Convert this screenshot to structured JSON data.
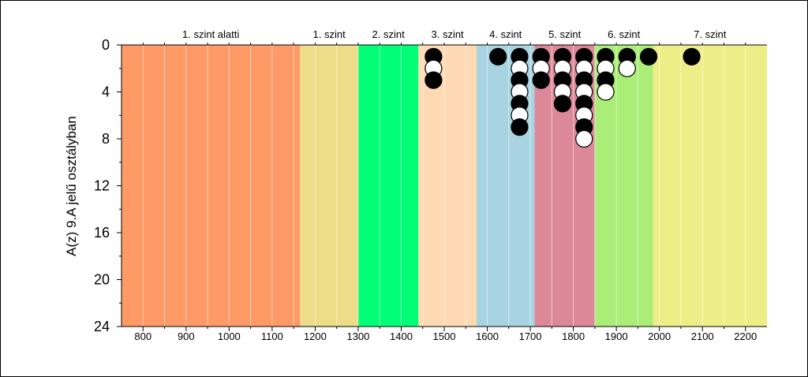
{
  "chart_data": {
    "type": "scatter",
    "ylabel": "A(z) 9.A jelű osztályban",
    "xlim": [
      750,
      2250
    ],
    "ylim": [
      24,
      0
    ],
    "x_ticks": [
      800,
      900,
      1000,
      1100,
      1200,
      1300,
      1400,
      1500,
      1600,
      1700,
      1800,
      1900,
      2000,
      2100,
      2200
    ],
    "y_ticks": [
      0,
      4,
      8,
      12,
      16,
      20,
      24
    ],
    "bands": [
      {
        "label": "1. szint alatti",
        "from": 750,
        "to": 1165,
        "color": "#FF9966"
      },
      {
        "label": "1. szint",
        "from": 1165,
        "to": 1300,
        "color": "#EEDD88"
      },
      {
        "label": "2. szint",
        "from": 1300,
        "to": 1440,
        "color": "#00FF77"
      },
      {
        "label": "3. szint",
        "from": 1440,
        "to": 1575,
        "color": "#FFD9B3"
      },
      {
        "label": "4. szint",
        "from": 1575,
        "to": 1710,
        "color": "#A8D4E2"
      },
      {
        "label": "5. szint",
        "from": 1710,
        "to": 1850,
        "color": "#DD8899"
      },
      {
        "label": "6. szint",
        "from": 1850,
        "to": 1985,
        "color": "#AAEE77"
      },
      {
        "label": "7. szint",
        "from": 1985,
        "to": 2250,
        "color": "#EEEE88"
      }
    ],
    "points": [
      {
        "x": 1475,
        "y": 1,
        "fill": "black"
      },
      {
        "x": 1475,
        "y": 2,
        "fill": "white"
      },
      {
        "x": 1475,
        "y": 3,
        "fill": "black"
      },
      {
        "x": 1625,
        "y": 1,
        "fill": "black"
      },
      {
        "x": 1675,
        "y": 1,
        "fill": "black"
      },
      {
        "x": 1675,
        "y": 2,
        "fill": "white"
      },
      {
        "x": 1675,
        "y": 3,
        "fill": "black"
      },
      {
        "x": 1675,
        "y": 4,
        "fill": "white"
      },
      {
        "x": 1675,
        "y": 5,
        "fill": "black"
      },
      {
        "x": 1675,
        "y": 6,
        "fill": "white"
      },
      {
        "x": 1675,
        "y": 7,
        "fill": "black"
      },
      {
        "x": 1725,
        "y": 1,
        "fill": "black"
      },
      {
        "x": 1725,
        "y": 2,
        "fill": "white"
      },
      {
        "x": 1725,
        "y": 3,
        "fill": "black"
      },
      {
        "x": 1775,
        "y": 1,
        "fill": "black"
      },
      {
        "x": 1775,
        "y": 2,
        "fill": "white"
      },
      {
        "x": 1775,
        "y": 3,
        "fill": "black"
      },
      {
        "x": 1775,
        "y": 4,
        "fill": "white"
      },
      {
        "x": 1775,
        "y": 5,
        "fill": "black"
      },
      {
        "x": 1825,
        "y": 1,
        "fill": "black"
      },
      {
        "x": 1825,
        "y": 2,
        "fill": "white"
      },
      {
        "x": 1825,
        "y": 3,
        "fill": "black"
      },
      {
        "x": 1825,
        "y": 4,
        "fill": "white"
      },
      {
        "x": 1825,
        "y": 5,
        "fill": "black"
      },
      {
        "x": 1825,
        "y": 6,
        "fill": "white"
      },
      {
        "x": 1825,
        "y": 7,
        "fill": "black"
      },
      {
        "x": 1825,
        "y": 8,
        "fill": "white"
      },
      {
        "x": 1875,
        "y": 1,
        "fill": "black"
      },
      {
        "x": 1875,
        "y": 2,
        "fill": "white"
      },
      {
        "x": 1875,
        "y": 3,
        "fill": "black"
      },
      {
        "x": 1875,
        "y": 4,
        "fill": "white"
      },
      {
        "x": 1925,
        "y": 1,
        "fill": "black"
      },
      {
        "x": 1925,
        "y": 2,
        "fill": "white"
      },
      {
        "x": 1975,
        "y": 1,
        "fill": "black"
      },
      {
        "x": 2075,
        "y": 1,
        "fill": "black"
      }
    ]
  }
}
